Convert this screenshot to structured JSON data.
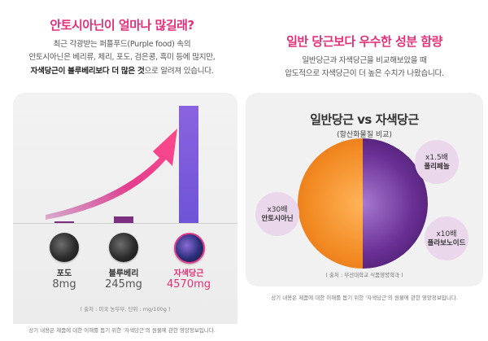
{
  "left": {
    "title": "안토시아닌이 얼마나 많길래?",
    "desc_line1": "최근 각광받는 퍼플푸드(Purple food) 속의",
    "desc_line2": "안토시아닌은 베리류, 체리, 포도, 검은콩, 흑미 등에 많지만,",
    "desc_line3_bold": "자색당근이 블루베리보다 더 많은 것",
    "desc_line3_rest": "으로 알려져 있습니다.",
    "chart_data": {
      "type": "bar",
      "categories": [
        "포도",
        "블루베리",
        "자색당근"
      ],
      "values": [
        8,
        245,
        4570
      ],
      "unit": "mg",
      "value_labels": [
        "8mg",
        "245mg",
        "4570mg"
      ],
      "highlight": "자색당근",
      "colors": {
        "bar_dark": "#7a2f7f",
        "bar_highlight_top": "#8a63e0",
        "bar_highlight_bottom": "#6e54d6",
        "arrow": "#e1308a"
      }
    },
    "source": "( 출처 : 미국 농무부, 단위 : mg/100g )",
    "footnote": "상기 내용은 제품에 대한 이해를 돕기 위한 '자색당근'의 원물에 관한 영양정보입니다."
  },
  "right": {
    "title": "일반 당근보다 우수한 성분 함량",
    "desc_line1": "일반당근과 자색당근을 비교해보았을 때",
    "desc_line2": "압도적으로 자색당근이 더 높은 수치가 나왔습니다.",
    "compare_title": "일반당근 vs 자색당근",
    "compare_subtitle": "(항산화물질 비교)",
    "bubbles": [
      {
        "mult": "x30배",
        "name": "안토시아닌"
      },
      {
        "mult": "x1.5배",
        "name": "폴리페놀"
      },
      {
        "mult": "x10배",
        "name": "플라보노이드"
      }
    ],
    "source": "( 출처 : 부산대학교 식품영양학과 )",
    "footnote": "상기 내용은 제품에 대한 이해를 돕기 위한 '자색당근'의 원물에 관한 영양정보입니다."
  }
}
